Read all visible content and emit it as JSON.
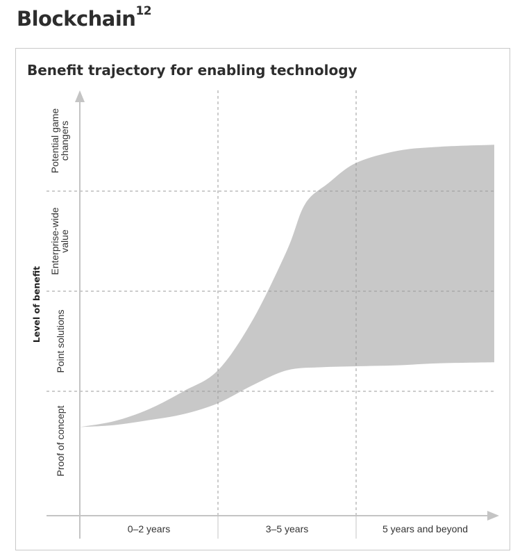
{
  "page": {
    "title": "Blockchain",
    "title_superscript": "12"
  },
  "chart_data": {
    "type": "area",
    "title": "Benefit trajectory for enabling technology",
    "ylabel": "Level of benefit",
    "xlabel": "",
    "x_categories": [
      "0–2 years",
      "3–5 years",
      "5 years and beyond"
    ],
    "y_categories": [
      "Proof of concept",
      "Point solutions",
      "Enterprise-wide value",
      "Potential game changers"
    ],
    "x_range": [
      0,
      3
    ],
    "y_range": [
      0,
      4
    ],
    "fill_color": "#c8c8c8",
    "grid": "dashed",
    "series": [
      {
        "role": "upper",
        "x": [
          0,
          0.25,
          0.5,
          0.75,
          1.0,
          1.25,
          1.5,
          1.63,
          1.8,
          2.0,
          2.3,
          2.6,
          3.0
        ],
        "y": [
          0.64,
          0.7,
          0.82,
          1.0,
          1.21,
          1.71,
          2.41,
          2.87,
          3.08,
          3.28,
          3.4,
          3.44,
          3.46
        ]
      },
      {
        "role": "lower",
        "x": [
          0,
          0.25,
          0.5,
          0.75,
          1.0,
          1.25,
          1.5,
          1.75,
          2.0,
          2.3,
          2.6,
          3.0
        ],
        "y": [
          0.64,
          0.66,
          0.71,
          0.77,
          0.88,
          1.06,
          1.21,
          1.24,
          1.25,
          1.26,
          1.28,
          1.29
        ]
      }
    ]
  }
}
